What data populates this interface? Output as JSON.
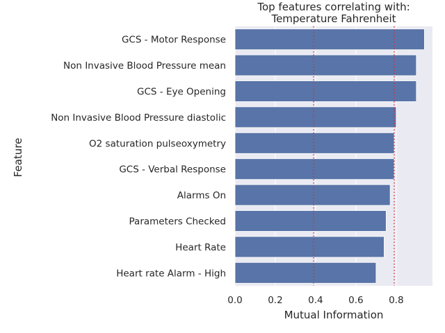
{
  "chart_data": {
    "type": "bar",
    "orientation": "horizontal",
    "title_lines": [
      "Top features correlating with:",
      "Temperature Fahrenheit"
    ],
    "xlabel": "Mutual Information",
    "ylabel": "Feature",
    "xlim": [
      0,
      0.98
    ],
    "xticks": [
      0.0,
      0.2,
      0.4,
      0.6,
      0.8
    ],
    "xtick_labels": [
      "0.0",
      "0.2",
      "0.4",
      "0.6",
      "0.8"
    ],
    "categories": [
      "GCS - Motor Response",
      "Non Invasive Blood Pressure mean",
      "GCS - Eye Opening",
      "Non Invasive Blood Pressure diastolic",
      "O2 saturation pulseoxymetry",
      "GCS - Verbal Response",
      "Alarms On",
      "Parameters Checked",
      "Heart Rate",
      "Heart rate Alarm - High"
    ],
    "values": [
      0.94,
      0.9,
      0.9,
      0.8,
      0.79,
      0.79,
      0.77,
      0.75,
      0.74,
      0.7
    ],
    "reference_lines": [
      0.39,
      0.79
    ],
    "grid": true,
    "colors": {
      "bar": "#5874a8",
      "background": "#eaeaf2",
      "grid": "#ffffff",
      "reference_line": "#d9303a",
      "text": "#262626"
    }
  }
}
